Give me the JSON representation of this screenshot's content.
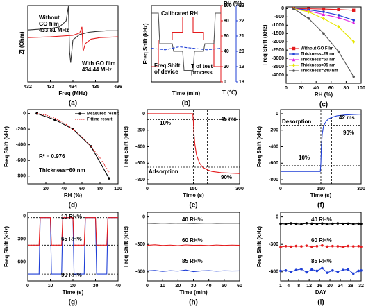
{
  "chart_data": [
    {
      "type": "line",
      "label": "(a)",
      "xlabel": "Freq (MHz)",
      "ylabel": "|Z| (Ohm)",
      "xlim": [
        432,
        436
      ],
      "xticks": [
        432,
        433,
        434,
        435,
        436
      ],
      "ylim": [
        0,
        100
      ],
      "series": [
        {
          "color": "#333333",
          "x": [
            432,
            432.5,
            433,
            433.4,
            433.7,
            433.8,
            433.85,
            433.9,
            434,
            434.3,
            434.7,
            435,
            435.5,
            436
          ],
          "values": [
            68,
            69,
            70,
            72,
            80,
            99,
            40,
            25,
            55,
            62,
            65,
            66,
            67,
            67
          ]
        },
        {
          "color": "#e41a1c",
          "x": [
            432,
            433,
            433.5,
            434,
            434.3,
            434.4,
            434.45,
            434.55,
            434.8,
            435.2,
            436
          ],
          "values": [
            58,
            59,
            60,
            61,
            64,
            72,
            40,
            50,
            56,
            58,
            59
          ]
        }
      ],
      "annotations": [
        {
          "lines": [
            "Without",
            "GO film",
            "433.81 MHz"
          ],
          "color": "#000000"
        },
        {
          "lines": [
            "With GO film",
            "434.44 MHz"
          ],
          "color": "#e41a1c"
        }
      ]
    },
    {
      "type": "line",
      "label": "(b)",
      "xlabel": "Time (min)",
      "ylabel": "Freq Shift (kHz)",
      "xlim": [
        0,
        100
      ],
      "ylim": [
        -100,
        0
      ],
      "y2label": "RH (%)",
      "y2lim": [
        0,
        100
      ],
      "y2ticks": [
        0,
        20,
        40,
        60,
        80,
        100
      ],
      "y2color": "#e41a1c",
      "y3label": "T (℃)",
      "y3lim": [
        18,
        23
      ],
      "y3ticks": [
        18,
        19,
        20,
        21,
        22,
        23
      ],
      "y3color": "#1f3fd6",
      "series": [
        {
          "color": "#e41a1c",
          "axis": "y2",
          "x": [
            0,
            10,
            10,
            30,
            30,
            45,
            45,
            60,
            60,
            75,
            75,
            90,
            90,
            100
          ],
          "values": [
            20,
            20,
            55,
            55,
            65,
            65,
            85,
            85,
            65,
            65,
            55,
            55,
            20,
            20
          ]
        },
        {
          "color": "#555555",
          "x": [
            0,
            10,
            12,
            30,
            32,
            45,
            47,
            60,
            62,
            75,
            77,
            90,
            92,
            100
          ],
          "values": [
            -10,
            -10,
            -50,
            -50,
            -60,
            -60,
            -85,
            -85,
            -60,
            -60,
            -50,
            -50,
            -10,
            -10
          ]
        },
        {
          "color": "#1f3fd6",
          "axis": "y3",
          "dash": "dashed",
          "x": [
            0,
            20,
            40,
            60,
            80,
            100
          ],
          "values": [
            20.2,
            20.1,
            20.3,
            20.2,
            20.1,
            20.2
          ]
        }
      ],
      "annotations": [
        {
          "lines": [
            "Calibrated RH"
          ],
          "color": "#e41a1c"
        },
        {
          "lines": [
            "Freq Shift",
            "of device"
          ],
          "color": "#444444"
        },
        {
          "lines": [
            "T of test",
            "process"
          ],
          "color": "#1f3fd6"
        }
      ]
    },
    {
      "type": "line",
      "label": "(c)",
      "xlabel": "RH (%)",
      "ylabel": "Freq Shift (kHz)",
      "xlim": [
        0,
        100
      ],
      "xticks": [
        0,
        20,
        40,
        60,
        80,
        100
      ],
      "ylim": [
        -4500,
        100
      ],
      "yticks": [
        0,
        -500,
        -1000,
        -1500,
        -2000,
        -2500,
        -3000,
        -3500,
        -4000
      ],
      "series": [
        {
          "name": "Without GO Film",
          "color": "#e41a1c",
          "marker": "square",
          "x": [
            10,
            30,
            50,
            70,
            90
          ],
          "values": [
            0,
            -10,
            -30,
            -60,
            -100
          ]
        },
        {
          "name": "Thickness=29 nm",
          "color": "#1f3fd6",
          "marker": "circle",
          "x": [
            10,
            30,
            50,
            70,
            90
          ],
          "values": [
            0,
            -80,
            -200,
            -400,
            -700
          ]
        },
        {
          "name": "Thickness=60 nm",
          "color": "#e020e0",
          "marker": "triangle",
          "x": [
            10,
            30,
            50,
            70,
            90
          ],
          "values": [
            0,
            -150,
            -350,
            -550,
            -850
          ]
        },
        {
          "name": "Thickness=95 nm",
          "color": "#e6e600",
          "marker": "diamond",
          "x": [
            10,
            30,
            50,
            70,
            90
          ],
          "values": [
            0,
            -200,
            -600,
            -1100,
            -2000
          ]
        },
        {
          "name": "Thickness=240 nm",
          "color": "#555555",
          "marker": "circle",
          "x": [
            10,
            30,
            50,
            70,
            90
          ],
          "values": [
            0,
            -600,
            -1500,
            -2600,
            -4100
          ]
        }
      ]
    },
    {
      "type": "line",
      "label": "(d)",
      "xlabel": "RH (%)",
      "ylabel": "Freq Shift (kHz)",
      "xlim": [
        0,
        100
      ],
      "xticks": [
        20,
        40,
        60,
        80,
        100
      ],
      "ylim": [
        -900,
        50
      ],
      "yticks": [
        0,
        -200,
        -400,
        -600,
        -800
      ],
      "series": [
        {
          "name": "Measured result",
          "color": "#000000",
          "marker": "circle",
          "x": [
            10,
            30,
            50,
            70,
            90
          ],
          "values": [
            0,
            -80,
            -200,
            -420,
            -830
          ]
        },
        {
          "name": "Fitting result",
          "color": "#e41a1c",
          "dash": "dotted",
          "x": [
            10,
            20,
            30,
            40,
            50,
            60,
            70,
            80,
            90
          ],
          "values": [
            0,
            -20,
            -60,
            -120,
            -200,
            -300,
            -420,
            -570,
            -750
          ]
        }
      ],
      "annotations": [
        {
          "lines": [
            "R² = 0.976"
          ],
          "color": "#1f3fd6"
        },
        {
          "lines": [
            "Thickness≈60 nm"
          ],
          "color": "#000000"
        }
      ]
    },
    {
      "type": "line",
      "label": "(e)",
      "xlabel": "Time (s)",
      "ylabel": "Freq Shift (kHz)",
      "xlim": [
        0,
        300
      ],
      "xticks": [
        0,
        150,
        300
      ],
      "ylim": [
        -850,
        50
      ],
      "yticks": [
        0,
        -200,
        -400,
        -600,
        -800
      ],
      "ref_x": [
        150,
        195
      ],
      "ref_y": [
        -72,
        -648
      ],
      "series": [
        {
          "color": "#e41a1c",
          "x": [
            0,
            50,
            100,
            148,
            150,
            152,
            155,
            160,
            170,
            180,
            195,
            210,
            240,
            270,
            300
          ],
          "values": [
            0,
            0,
            0,
            0,
            -100,
            -250,
            -380,
            -500,
            -600,
            -650,
            -680,
            -700,
            -715,
            -720,
            -725
          ]
        }
      ],
      "annotations": [
        {
          "lines": [
            "10%"
          ],
          "color": "#000000"
        },
        {
          "lines": [
            "90%"
          ],
          "color": "#000000"
        },
        {
          "lines": [
            "45 ms"
          ],
          "color": "#e41a1c"
        },
        {
          "lines": [
            "Adsorption"
          ],
          "color": "#e41a1c"
        }
      ]
    },
    {
      "type": "line",
      "label": "(f)",
      "xlabel": "Time (s)",
      "ylabel": "Freq Shift (kHz)",
      "xlim": [
        0,
        300
      ],
      "xticks": [
        0,
        150,
        300
      ],
      "ylim": [
        -850,
        50
      ],
      "yticks": [
        0,
        -200,
        -400,
        -600,
        -800
      ],
      "ref_x": [
        150,
        190
      ],
      "ref_y": [
        -630,
        -140
      ],
      "series": [
        {
          "color": "#1f3fd6",
          "x": [
            0,
            50,
            100,
            148,
            150,
            152,
            155,
            160,
            170,
            180,
            195,
            210,
            240,
            270,
            300
          ],
          "values": [
            -700,
            -700,
            -700,
            -700,
            -600,
            -400,
            -250,
            -150,
            -90,
            -60,
            -40,
            -25,
            -15,
            -10,
            -5
          ]
        }
      ],
      "annotations": [
        {
          "lines": [
            "Desorption"
          ],
          "color": "#1f3fd6"
        },
        {
          "lines": [
            "42 ms"
          ],
          "color": "#1f3fd6"
        },
        {
          "lines": [
            "10%"
          ],
          "color": "#000000"
        },
        {
          "lines": [
            "90%"
          ],
          "color": "#000000"
        }
      ]
    },
    {
      "type": "line",
      "label": "(g)",
      "xlabel": "Time (s)",
      "ylabel": "Freq Shift (kHz)",
      "xlim": [
        0,
        40
      ],
      "xticks": [
        0,
        10,
        20,
        30,
        40
      ],
      "ylim": [
        -850,
        50
      ],
      "yticks": [
        0,
        -300,
        -600
      ],
      "ref_y": [
        -20,
        -380,
        -760
      ],
      "series": [
        {
          "color": "#1f3fd6",
          "x": [
            0,
            5,
            5.5,
            10,
            10.5,
            15,
            15.5,
            20,
            20.5,
            25,
            25.5,
            30,
            30.5,
            35,
            35.5,
            40
          ],
          "values": [
            -760,
            -760,
            -20,
            -20,
            -760,
            -760,
            -20,
            -20,
            -760,
            -760,
            -20,
            -20,
            -760,
            -760,
            -20,
            -20
          ]
        },
        {
          "color": "#e41a1c",
          "x": [
            0,
            5,
            5.5,
            10,
            10.5,
            15,
            15.5,
            20,
            20.5,
            25,
            25.5,
            30,
            30.5,
            35,
            35.5,
            40
          ],
          "values": [
            -380,
            -380,
            -20,
            -20,
            -380,
            -380,
            -20,
            -20,
            -380,
            -380,
            -20,
            -20,
            -380,
            -380,
            -20,
            -20
          ]
        }
      ],
      "annotations": [
        {
          "lines": [
            "10 RH%"
          ],
          "color": "#000000"
        },
        {
          "lines": [
            "65 RH%"
          ],
          "color": "#000000"
        },
        {
          "lines": [
            "90 RH%"
          ],
          "color": "#000000"
        }
      ]
    },
    {
      "type": "line",
      "label": "(h)",
      "xlabel": "Time (min)",
      "ylabel": "Freq Shift (kHz)",
      "xlim": [
        0,
        60
      ],
      "xticks": [
        0,
        10,
        20,
        30,
        40,
        50,
        60
      ],
      "ylim": [
        -700,
        50
      ],
      "yticks": [
        0,
        -300,
        -600
      ],
      "series": [
        {
          "color": "#333333",
          "x": [
            0,
            5,
            10,
            15,
            20,
            25,
            30,
            35,
            40,
            45,
            50,
            55,
            60
          ],
          "values": [
            -70,
            -72,
            -68,
            -71,
            -69,
            -70,
            -73,
            -70,
            -68,
            -71,
            -70,
            -69,
            -70
          ]
        },
        {
          "color": "#e41a1c",
          "x": [
            0,
            5,
            10,
            15,
            20,
            25,
            30,
            35,
            40,
            45,
            50,
            55,
            60
          ],
          "values": [
            -310,
            -305,
            -312,
            -308,
            -314,
            -306,
            -310,
            -309,
            -313,
            -307,
            -311,
            -308,
            -310
          ]
        },
        {
          "color": "#1f3fd6",
          "x": [
            0,
            5,
            10,
            15,
            20,
            25,
            30,
            35,
            40,
            45,
            50,
            55,
            60
          ],
          "values": [
            -590,
            -585,
            -595,
            -588,
            -592,
            -580,
            -598,
            -590,
            -587,
            -593,
            -589,
            -591,
            -590
          ]
        }
      ],
      "annotations": [
        {
          "lines": [
            "40 RH%"
          ],
          "color": "#000000"
        },
        {
          "lines": [
            "60 RH%"
          ],
          "color": "#000000"
        },
        {
          "lines": [
            "85 RH%"
          ],
          "color": "#000000"
        }
      ]
    },
    {
      "type": "line",
      "label": "(i)",
      "xlabel": "DAY",
      "ylabel": "Freq Shift (kHz)",
      "xlim": [
        1,
        32
      ],
      "xticks": [
        1,
        4,
        8,
        12,
        16,
        20,
        24,
        28,
        32
      ],
      "ylim": [
        -700,
        50
      ],
      "yticks": [
        0,
        -300,
        -600
      ],
      "series": [
        {
          "color": "#000000",
          "marker": "circle",
          "x": [
            1,
            3,
            5,
            7,
            9,
            11,
            13,
            15,
            17,
            19,
            21,
            23,
            25,
            27,
            29,
            31,
            32
          ],
          "values": [
            -75,
            -78,
            -72,
            -76,
            -80,
            -70,
            -74,
            -77,
            -73,
            -79,
            -75,
            -72,
            -76,
            -74,
            -78,
            -75,
            -76
          ]
        },
        {
          "color": "#e41a1c",
          "marker": "circle",
          "x": [
            1,
            3,
            5,
            7,
            9,
            11,
            13,
            15,
            17,
            19,
            21,
            23,
            25,
            27,
            29,
            31,
            32
          ],
          "values": [
            -330,
            -320,
            -325,
            -318,
            -322,
            -315,
            -326,
            -320,
            -312,
            -324,
            -319,
            -321,
            -330,
            -318,
            -322,
            -320,
            -325
          ]
        },
        {
          "color": "#1f3fd6",
          "marker": "circle",
          "x": [
            1,
            3,
            5,
            7,
            9,
            11,
            13,
            15,
            17,
            19,
            21,
            23,
            25,
            27,
            29,
            31,
            32
          ],
          "values": [
            -590,
            -585,
            -600,
            -580,
            -570,
            -605,
            -575,
            -590,
            -560,
            -610,
            -585,
            -600,
            -580,
            -575,
            -620,
            -590,
            -585
          ]
        }
      ],
      "annotations": [
        {
          "lines": [
            "40 RH%"
          ],
          "color": "#000000"
        },
        {
          "lines": [
            "60 RH%"
          ],
          "color": "#000000"
        },
        {
          "lines": [
            "85 RH%"
          ],
          "color": "#000000"
        }
      ]
    }
  ]
}
